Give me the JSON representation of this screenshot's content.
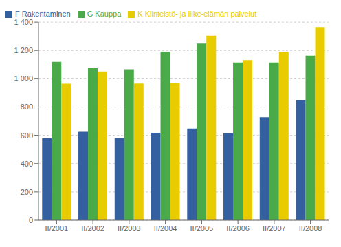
{
  "chart_data": {
    "type": "bar",
    "categories": [
      "II/2001",
      "II/2002",
      "II/2003",
      "II/2004",
      "II/2005",
      "II/2006",
      "II/2007",
      "II/2008"
    ],
    "series": [
      {
        "name": "F Rakentaminen",
        "color": "#3560a0",
        "values": [
          580,
          625,
          582,
          618,
          648,
          615,
          728,
          848
        ]
      },
      {
        "name": "G Kauppa",
        "color": "#4aaa4a",
        "values": [
          1120,
          1075,
          1063,
          1190,
          1248,
          1115,
          1115,
          1163
        ]
      },
      {
        "name": "K Kiinteistö- ja liike-elämän palvelut",
        "color": "#e8cc00",
        "values": [
          965,
          1052,
          967,
          970,
          1305,
          1132,
          1190,
          1365
        ]
      }
    ],
    "ylim": [
      0,
      1400
    ],
    "yticks": [
      0,
      200,
      400,
      600,
      800,
      {
        "value": 1000,
        "label": "1 000"
      },
      {
        "value": 1200,
        "label": "1 200"
      },
      {
        "value": 1400,
        "label": "1 400"
      }
    ],
    "grid": true,
    "legend": "upper left"
  }
}
